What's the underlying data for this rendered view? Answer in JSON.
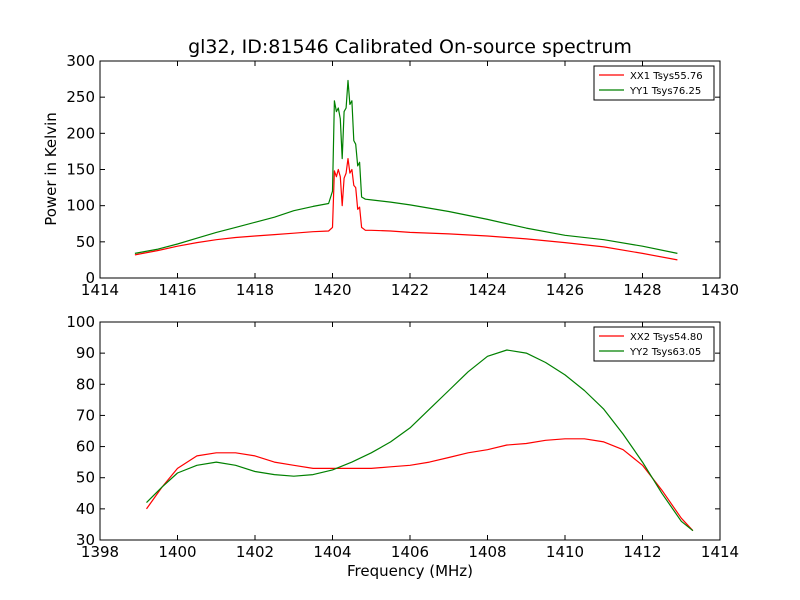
{
  "chart_data": [
    {
      "type": "line",
      "title": "gl32, ID:81546 Calibrated On-source spectrum",
      "xlabel": "",
      "ylabel": "Power in Kelvin",
      "xlim": [
        1414,
        1430
      ],
      "ylim": [
        0,
        300
      ],
      "xticks": [
        1414,
        1416,
        1418,
        1420,
        1422,
        1424,
        1426,
        1428,
        1430
      ],
      "yticks": [
        0,
        50,
        100,
        150,
        200,
        250,
        300
      ],
      "grid": false,
      "legend": "top-right",
      "series": [
        {
          "name": "XX1 Tsys55.76",
          "color": "#ff0000",
          "points": [
            [
              1414.9,
              32
            ],
            [
              1415.5,
              38
            ],
            [
              1416,
              44
            ],
            [
              1416.5,
              49
            ],
            [
              1417,
              53
            ],
            [
              1417.5,
              56
            ],
            [
              1418,
              58
            ],
            [
              1418.5,
              60
            ],
            [
              1419,
              62
            ],
            [
              1419.5,
              64
            ],
            [
              1419.9,
              65
            ],
            [
              1420.0,
              70
            ],
            [
              1420.05,
              148
            ],
            [
              1420.1,
              140
            ],
            [
              1420.15,
              150
            ],
            [
              1420.2,
              140
            ],
            [
              1420.25,
              100
            ],
            [
              1420.3,
              138
            ],
            [
              1420.35,
              145
            ],
            [
              1420.4,
              165
            ],
            [
              1420.45,
              145
            ],
            [
              1420.5,
              150
            ],
            [
              1420.55,
              128
            ],
            [
              1420.6,
              125
            ],
            [
              1420.65,
              95
            ],
            [
              1420.7,
              98
            ],
            [
              1420.75,
              70
            ],
            [
              1420.85,
              66
            ],
            [
              1421,
              66
            ],
            [
              1421.5,
              65
            ],
            [
              1422,
              63
            ],
            [
              1423,
              61
            ],
            [
              1424,
              58
            ],
            [
              1425,
              54
            ],
            [
              1426,
              49
            ],
            [
              1427,
              43
            ],
            [
              1428,
              34
            ],
            [
              1428.9,
              25
            ]
          ]
        },
        {
          "name": "YY1 Tsys76.25",
          "color": "#008000",
          "points": [
            [
              1414.9,
              34
            ],
            [
              1415.5,
              40
            ],
            [
              1416,
              47
            ],
            [
              1416.5,
              55
            ],
            [
              1417,
              63
            ],
            [
              1417.5,
              70
            ],
            [
              1418,
              77
            ],
            [
              1418.5,
              84
            ],
            [
              1419,
              93
            ],
            [
              1419.5,
              99
            ],
            [
              1419.9,
              103
            ],
            [
              1420.0,
              120
            ],
            [
              1420.05,
              245
            ],
            [
              1420.1,
              230
            ],
            [
              1420.15,
              235
            ],
            [
              1420.2,
              220
            ],
            [
              1420.25,
              165
            ],
            [
              1420.3,
              230
            ],
            [
              1420.35,
              235
            ],
            [
              1420.4,
              273
            ],
            [
              1420.45,
              240
            ],
            [
              1420.5,
              245
            ],
            [
              1420.55,
              190
            ],
            [
              1420.6,
              185
            ],
            [
              1420.65,
              155
            ],
            [
              1420.7,
              160
            ],
            [
              1420.75,
              112
            ],
            [
              1420.85,
              109
            ],
            [
              1421,
              108
            ],
            [
              1421.5,
              105
            ],
            [
              1422,
              101
            ],
            [
              1423,
              92
            ],
            [
              1424,
              81
            ],
            [
              1425,
              69
            ],
            [
              1426,
              59
            ],
            [
              1427,
              53
            ],
            [
              1428,
              44
            ],
            [
              1428.9,
              34
            ]
          ]
        }
      ]
    },
    {
      "type": "line",
      "title": "",
      "xlabel": "Frequency (MHz)",
      "ylabel": "",
      "xlim": [
        1398,
        1414
      ],
      "ylim": [
        30,
        100
      ],
      "xticks": [
        1398,
        1400,
        1402,
        1404,
        1406,
        1408,
        1410,
        1412,
        1414
      ],
      "yticks": [
        30,
        40,
        50,
        60,
        70,
        80,
        90,
        100
      ],
      "grid": false,
      "legend": "top-right",
      "series": [
        {
          "name": "XX2 Tsys54.80",
          "color": "#ff0000",
          "points": [
            [
              1399.2,
              40
            ],
            [
              1399.6,
              47
            ],
            [
              1400,
              53
            ],
            [
              1400.5,
              57
            ],
            [
              1401,
              58
            ],
            [
              1401.5,
              58
            ],
            [
              1402,
              57
            ],
            [
              1402.5,
              55
            ],
            [
              1403,
              54
            ],
            [
              1403.5,
              53
            ],
            [
              1404,
              53
            ],
            [
              1404.5,
              53
            ],
            [
              1405,
              53
            ],
            [
              1405.5,
              53.5
            ],
            [
              1406,
              54
            ],
            [
              1406.5,
              55
            ],
            [
              1407,
              56.5
            ],
            [
              1407.5,
              58
            ],
            [
              1408,
              59
            ],
            [
              1408.5,
              60.5
            ],
            [
              1409,
              61
            ],
            [
              1409.5,
              62
            ],
            [
              1410,
              62.5
            ],
            [
              1410.5,
              62.5
            ],
            [
              1411,
              61.5
            ],
            [
              1411.5,
              59
            ],
            [
              1412,
              54
            ],
            [
              1412.5,
              46
            ],
            [
              1413,
              37
            ],
            [
              1413.3,
              33
            ]
          ]
        },
        {
          "name": "YY2 Tsys63.05",
          "color": "#008000",
          "points": [
            [
              1399.2,
              42
            ],
            [
              1399.6,
              47
            ],
            [
              1400,
              51.5
            ],
            [
              1400.5,
              54
            ],
            [
              1401,
              55
            ],
            [
              1401.5,
              54
            ],
            [
              1402,
              52
            ],
            [
              1402.5,
              51
            ],
            [
              1403,
              50.5
            ],
            [
              1403.5,
              51
            ],
            [
              1404,
              52.5
            ],
            [
              1404.5,
              55
            ],
            [
              1405,
              58
            ],
            [
              1405.5,
              61.5
            ],
            [
              1406,
              66
            ],
            [
              1406.5,
              72
            ],
            [
              1407,
              78
            ],
            [
              1407.5,
              84
            ],
            [
              1408,
              89
            ],
            [
              1408.5,
              91
            ],
            [
              1409,
              90
            ],
            [
              1409.5,
              87
            ],
            [
              1410,
              83
            ],
            [
              1410.5,
              78
            ],
            [
              1411,
              72
            ],
            [
              1411.5,
              64
            ],
            [
              1412,
              55
            ],
            [
              1412.5,
              45
            ],
            [
              1413,
              36
            ],
            [
              1413.3,
              33
            ]
          ]
        }
      ]
    }
  ]
}
